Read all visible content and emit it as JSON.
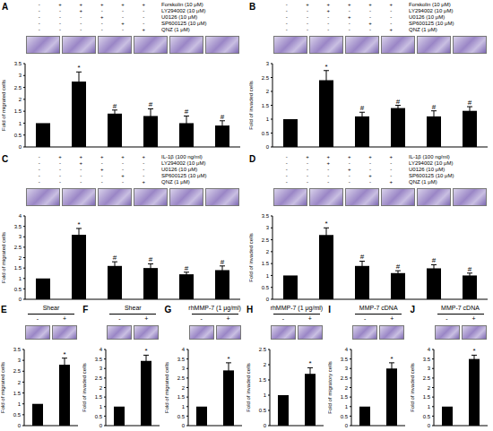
{
  "chart_data": [
    {
      "type": "bar",
      "title": "A",
      "conditions": [
        {
          "label": "Forskolin (10 μM)",
          "signs": [
            "-",
            "+",
            "+",
            "+",
            "+",
            "+"
          ]
        },
        {
          "label": "LY294002 (10 μM)",
          "signs": [
            "-",
            "-",
            "+",
            "-",
            "-",
            "-"
          ]
        },
        {
          "label": "U0126 (10 μM)",
          "signs": [
            "-",
            "-",
            "-",
            "+",
            "-",
            "-"
          ]
        },
        {
          "label": "SP600125 (10 μM)",
          "signs": [
            "-",
            "-",
            "-",
            "-",
            "+",
            "-"
          ]
        },
        {
          "label": "QNZ (1 μM)",
          "signs": [
            "-",
            "-",
            "-",
            "-",
            "-",
            "+"
          ]
        }
      ],
      "categories": [
        null,
        null,
        null,
        null,
        null,
        null
      ],
      "values": [
        1,
        2.75,
        1.4,
        1.3,
        1.0,
        0.9
      ],
      "errors": [
        0,
        0.4,
        0.15,
        0.3,
        0.3,
        0.2
      ],
      "annotations": [
        null,
        "*",
        "#",
        "#",
        "#",
        "#"
      ],
      "color": "#000000",
      "ylabel": "Fold of migrated cells",
      "ylim": [
        0,
        3.5
      ],
      "yticks": [
        0,
        0.5,
        1,
        1.5,
        2,
        2.5,
        3,
        3.5
      ],
      "tick_labels": "y"
    },
    {
      "type": "bar",
      "title": "B",
      "conditions": [
        {
          "label": "Forskolin (10 μM)",
          "signs": [
            "-",
            "+",
            "+",
            "+",
            "+",
            "+"
          ]
        },
        {
          "label": "LY294002 (10 μM)",
          "signs": [
            "-",
            "-",
            "+",
            "-",
            "-",
            "-"
          ]
        },
        {
          "label": "U0126 (10 μM)",
          "signs": [
            "-",
            "-",
            "-",
            "+",
            "-",
            "-"
          ]
        },
        {
          "label": "SP600125 (10 μM)",
          "signs": [
            "-",
            "-",
            "-",
            "-",
            "+",
            "-"
          ]
        },
        {
          "label": "QNZ (1 μM)",
          "signs": [
            "-",
            "-",
            "-",
            "-",
            "-",
            "+"
          ]
        }
      ],
      "categories": [
        null,
        null,
        null,
        null,
        null,
        null
      ],
      "values": [
        1,
        2.4,
        1.1,
        1.4,
        1.1,
        1.3
      ],
      "errors": [
        0,
        0.35,
        0.15,
        0.1,
        0.2,
        0.15
      ],
      "annotations": [
        null,
        "*",
        "#",
        "#",
        "#",
        "#"
      ],
      "color": "#000000",
      "ylabel": "Fold of invaded cells",
      "ylim": [
        0,
        3
      ],
      "yticks": [
        0,
        0.5,
        1,
        1.5,
        2,
        2.5,
        3
      ],
      "tick_labels": "y"
    },
    {
      "type": "bar",
      "title": "C",
      "conditions": [
        {
          "label": "IL-1β (100 ng/ml)",
          "signs": [
            "-",
            "+",
            "+",
            "+",
            "+",
            "+"
          ]
        },
        {
          "label": "LY294002 (10 μM)",
          "signs": [
            "-",
            "-",
            "+",
            "-",
            "-",
            "-"
          ]
        },
        {
          "label": "U0126 (10 μM)",
          "signs": [
            "-",
            "-",
            "-",
            "+",
            "-",
            "-"
          ]
        },
        {
          "label": "SP600125 (10 μM)",
          "signs": [
            "-",
            "-",
            "-",
            "-",
            "+",
            "-"
          ]
        },
        {
          "label": "QNZ (1 μM)",
          "signs": [
            "-",
            "-",
            "-",
            "-",
            "-",
            "+"
          ]
        }
      ],
      "categories": [
        null,
        null,
        null,
        null,
        null,
        null
      ],
      "values": [
        1,
        3.1,
        1.6,
        1.5,
        1.2,
        1.4
      ],
      "errors": [
        0,
        0.3,
        0.2,
        0.2,
        0.1,
        0.2
      ],
      "annotations": [
        null,
        "*",
        "#",
        "#",
        "#",
        "#"
      ],
      "color": "#000000",
      "ylabel": "Fold of migrated cells",
      "ylim": [
        0,
        4
      ],
      "yticks": [
        0,
        0.5,
        1,
        1.5,
        2,
        2.5,
        3,
        3.5,
        4
      ],
      "tick_labels": "y"
    },
    {
      "type": "bar",
      "title": "D",
      "conditions": [
        {
          "label": "IL-1β (100 ng/ml)",
          "signs": [
            "-",
            "+",
            "+",
            "+",
            "+",
            "+"
          ]
        },
        {
          "label": "LY294002 (10 μM)",
          "signs": [
            "-",
            "-",
            "+",
            "-",
            "-",
            "-"
          ]
        },
        {
          "label": "U0126 (10 μM)",
          "signs": [
            "-",
            "-",
            "-",
            "+",
            "-",
            "-"
          ]
        },
        {
          "label": "SP600125 (10 μM)",
          "signs": [
            "-",
            "-",
            "-",
            "-",
            "+",
            "-"
          ]
        },
        {
          "label": "QNZ (1 μM)",
          "signs": [
            "-",
            "-",
            "-",
            "-",
            "-",
            "+"
          ]
        }
      ],
      "categories": [
        null,
        null,
        null,
        null,
        null,
        null
      ],
      "values": [
        1,
        2.7,
        1.4,
        1.1,
        1.3,
        1.0
      ],
      "errors": [
        0,
        0.3,
        0.2,
        0.1,
        0.15,
        0.1
      ],
      "annotations": [
        null,
        "*",
        "#",
        "#",
        "#",
        "#"
      ],
      "color": "#000000",
      "ylabel": "Fold of invaded cells",
      "ylim": [
        0,
        3.5
      ],
      "yticks": [
        0,
        0.5,
        1,
        1.5,
        2,
        2.5,
        3,
        3.5
      ],
      "tick_labels": "y"
    },
    {
      "type": "bar",
      "title": "E",
      "conditions": [
        {
          "label": "Shear",
          "signs": [
            "-",
            "+"
          ]
        }
      ],
      "categories": [
        null,
        null
      ],
      "values": [
        1,
        2.8
      ],
      "errors": [
        0,
        0.3
      ],
      "annotations": [
        null,
        "*"
      ],
      "color": "#000000",
      "ylabel": "Fold of migrated cells",
      "ylim": [
        0,
        3.5
      ],
      "yticks": [
        0,
        0.5,
        1,
        1.5,
        2,
        2.5,
        3,
        3.5
      ],
      "tick_labels": "y"
    },
    {
      "type": "bar",
      "title": "F",
      "conditions": [
        {
          "label": "Shear",
          "signs": [
            "-",
            "+"
          ]
        }
      ],
      "categories": [
        null,
        null
      ],
      "values": [
        1,
        3.4
      ],
      "errors": [
        0,
        0.3
      ],
      "annotations": [
        null,
        "*"
      ],
      "color": "#000000",
      "ylabel": "Fold of invaded cells",
      "ylim": [
        0,
        4
      ],
      "yticks": [
        0,
        0.5,
        1,
        1.5,
        2,
        2.5,
        3,
        3.5,
        4
      ],
      "tick_labels": "y"
    },
    {
      "type": "bar",
      "title": "G",
      "conditions": [
        {
          "label": "rhMMP-7 (1 μg/ml)",
          "signs": [
            "-",
            "+"
          ]
        }
      ],
      "categories": [
        null,
        null
      ],
      "values": [
        1,
        2.9
      ],
      "errors": [
        0,
        0.4
      ],
      "annotations": [
        null,
        "*"
      ],
      "color": "#000000",
      "ylabel": "Fold of migrated cells",
      "ylim": [
        0,
        4
      ],
      "yticks": [
        0,
        0.5,
        1,
        1.5,
        2,
        2.5,
        3,
        3.5,
        4
      ],
      "tick_labels": "y"
    },
    {
      "type": "bar",
      "title": "H",
      "conditions": [
        {
          "label": "rhMMP-7 (1 μg/ml)",
          "signs": [
            "-",
            "+"
          ]
        }
      ],
      "categories": [
        null,
        null
      ],
      "values": [
        1,
        1.7
      ],
      "errors": [
        0,
        0.2
      ],
      "annotations": [
        null,
        "*"
      ],
      "color": "#000000",
      "ylabel": "Fold of invaded cells",
      "ylim": [
        0,
        2.5
      ],
      "yticks": [
        0,
        0.5,
        1,
        1.5,
        2,
        2.5
      ],
      "tick_labels": "y"
    },
    {
      "type": "bar",
      "title": "I",
      "conditions": [
        {
          "label": "MMP-7 cDNA",
          "signs": [
            "-",
            "+"
          ]
        }
      ],
      "categories": [
        null,
        null
      ],
      "values": [
        1,
        3.0
      ],
      "errors": [
        0,
        0.3
      ],
      "annotations": [
        null,
        "*"
      ],
      "color": "#000000",
      "ylabel": "Fold of migratory cells",
      "ylim": [
        0,
        4
      ],
      "yticks": [
        0,
        0.5,
        1,
        1.5,
        2,
        2.5,
        3,
        3.5,
        4
      ],
      "tick_labels": "y"
    },
    {
      "type": "bar",
      "title": "J",
      "conditions": [
        {
          "label": "MMP-7 cDNA",
          "signs": [
            "-",
            "+"
          ]
        }
      ],
      "categories": [
        null,
        null
      ],
      "values": [
        1,
        3.5
      ],
      "errors": [
        0,
        0.2
      ],
      "annotations": [
        null,
        "*"
      ],
      "color": "#000000",
      "ylabel": "Fold of invaded cells",
      "ylim": [
        0,
        4
      ],
      "yticks": [
        0,
        0.5,
        1,
        1.5,
        2,
        2.5,
        3,
        3.5,
        4
      ],
      "tick_labels": "y"
    }
  ]
}
